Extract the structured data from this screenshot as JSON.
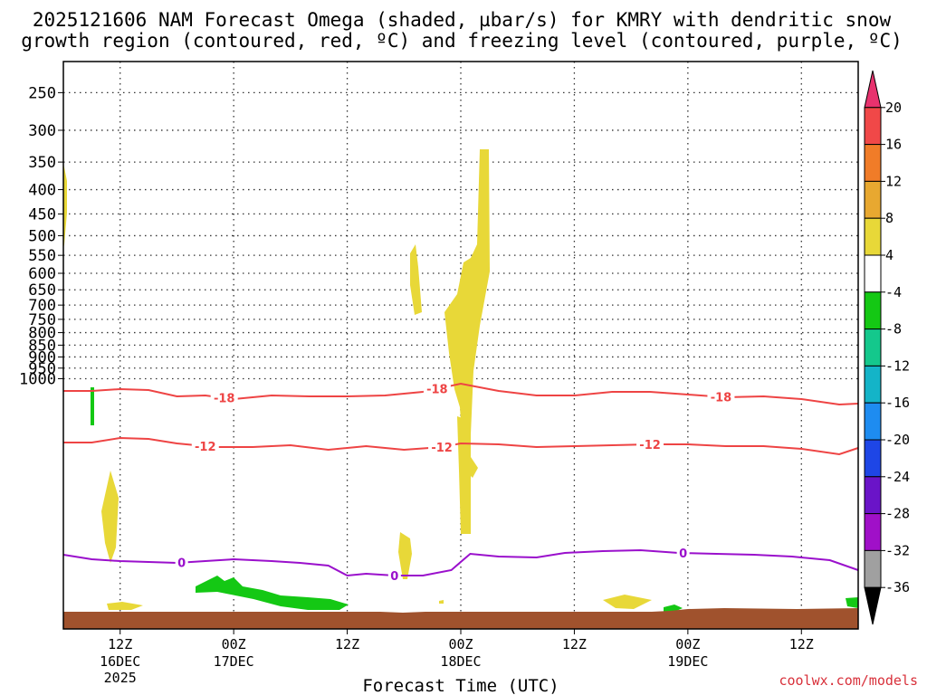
{
  "chart_data": {
    "type": "time-height",
    "title_line1": "2025121606 NAM Forecast Omega (shaded, µbar/s) for KMRY with dendritic snow",
    "title_line2": "growth region (contoured, red, ºC) and freezing level (contoured, purple, ºC)",
    "xlabel": "Forecast Time (UTC)",
    "credit": "coolwx.com/models",
    "x_range_hours": [
      0,
      84
    ],
    "y_levels": [
      "250",
      "300",
      "350",
      "400",
      "450",
      "500",
      "550",
      "600",
      "650",
      "700",
      "750",
      "800",
      "850",
      "900",
      "950",
      "1000"
    ],
    "x_ticks": [
      {
        "hour": 6,
        "l1": "12Z",
        "l2": "16DEC",
        "l3": "2025"
      },
      {
        "hour": 18,
        "l1": "00Z",
        "l2": "17DEC",
        "l3": ""
      },
      {
        "hour": 30,
        "l1": "12Z",
        "l2": "",
        "l3": ""
      },
      {
        "hour": 42,
        "l1": "00Z",
        "l2": "18DEC",
        "l3": ""
      },
      {
        "hour": 54,
        "l1": "12Z",
        "l2": "",
        "l3": ""
      },
      {
        "hour": 66,
        "l1": "00Z",
        "l2": "19DEC",
        "l3": ""
      },
      {
        "hour": 78,
        "l1": "12Z",
        "l2": "",
        "l3": ""
      }
    ],
    "colorbar": {
      "labels": [
        "20",
        "16",
        "12",
        "8",
        "4",
        "-4",
        "-8",
        "-12",
        "-16",
        "-20",
        "-24",
        "-28",
        "-32",
        "-36"
      ],
      "colors": [
        "#e8326e",
        "#f04848",
        "#f07c28",
        "#e8a830",
        "#e8d838",
        "#ffffff",
        "#14c814",
        "#14c88c",
        "#14b4c8",
        "#1e8cf0",
        "#1e46e6",
        "#6a14c8",
        "#a010c8",
        "#a0a0a0",
        "#000000"
      ]
    },
    "contours": [
      {
        "name": "-18",
        "color": "#ee4444",
        "label": "-18",
        "points": [
          [
            0,
            432
          ],
          [
            3,
            432
          ],
          [
            6,
            430
          ],
          [
            9,
            431
          ],
          [
            12,
            438
          ],
          [
            15,
            437
          ],
          [
            18,
            441
          ],
          [
            22,
            437
          ],
          [
            26,
            438
          ],
          [
            30,
            438
          ],
          [
            34,
            437
          ],
          [
            38,
            433
          ],
          [
            42,
            424
          ],
          [
            46,
            432
          ],
          [
            50,
            437
          ],
          [
            54,
            437
          ],
          [
            58,
            433
          ],
          [
            62,
            433
          ],
          [
            66,
            436
          ],
          [
            70,
            439
          ],
          [
            74,
            438
          ],
          [
            78,
            441
          ],
          [
            82,
            447
          ],
          [
            84,
            446
          ]
        ],
        "label_hours": [
          17,
          39.5,
          69.5
        ]
      },
      {
        "name": "-12",
        "color": "#ee4444",
        "label": "-12",
        "points": [
          [
            0,
            489
          ],
          [
            3,
            489
          ],
          [
            6,
            484
          ],
          [
            9,
            485
          ],
          [
            12,
            490
          ],
          [
            16,
            494
          ],
          [
            20,
            494
          ],
          [
            24,
            492
          ],
          [
            28,
            497
          ],
          [
            32,
            493
          ],
          [
            36,
            497
          ],
          [
            40,
            494
          ],
          [
            42,
            490
          ],
          [
            46,
            491
          ],
          [
            50,
            494
          ],
          [
            54,
            493
          ],
          [
            58,
            492
          ],
          [
            62,
            491
          ],
          [
            66,
            491
          ],
          [
            70,
            493
          ],
          [
            74,
            493
          ],
          [
            78,
            496
          ],
          [
            82,
            502
          ],
          [
            84,
            495
          ]
        ],
        "label_hours": [
          15,
          40,
          62
        ]
      },
      {
        "name": "0",
        "color": "#9a10cc",
        "label": "0",
        "points": [
          [
            0,
            613
          ],
          [
            3,
            618
          ],
          [
            6,
            620
          ],
          [
            9,
            621
          ],
          [
            12,
            622
          ],
          [
            15,
            620
          ],
          [
            18,
            618
          ],
          [
            22,
            620
          ],
          [
            25,
            622
          ],
          [
            28,
            625
          ],
          [
            30,
            636
          ],
          [
            32,
            634
          ],
          [
            35,
            636
          ],
          [
            38,
            636
          ],
          [
            41,
            630
          ],
          [
            43,
            612
          ],
          [
            46,
            615
          ],
          [
            50,
            616
          ],
          [
            53,
            611
          ],
          [
            57,
            609
          ],
          [
            61,
            608
          ],
          [
            65,
            611
          ],
          [
            69,
            612
          ],
          [
            73,
            613
          ],
          [
            77,
            615
          ],
          [
            81,
            619
          ],
          [
            84,
            630
          ]
        ],
        "label_hours": [
          12.5,
          35,
          65.5
        ]
      }
    ]
  }
}
